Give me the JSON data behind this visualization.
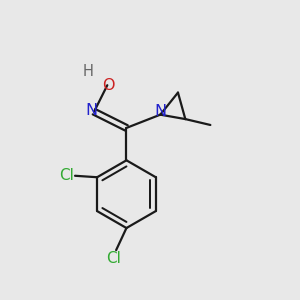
{
  "bg_color": "#e8e8e8",
  "bond_color": "#1a1a1a",
  "N_color": "#2222cc",
  "O_color": "#cc2222",
  "Cl_color": "#33aa33",
  "H_color": "#666666",
  "line_width": 1.6,
  "figsize": [
    3.0,
    3.0
  ],
  "dpi": 100,
  "xlim": [
    0,
    10
  ],
  "ylim": [
    0,
    10
  ]
}
